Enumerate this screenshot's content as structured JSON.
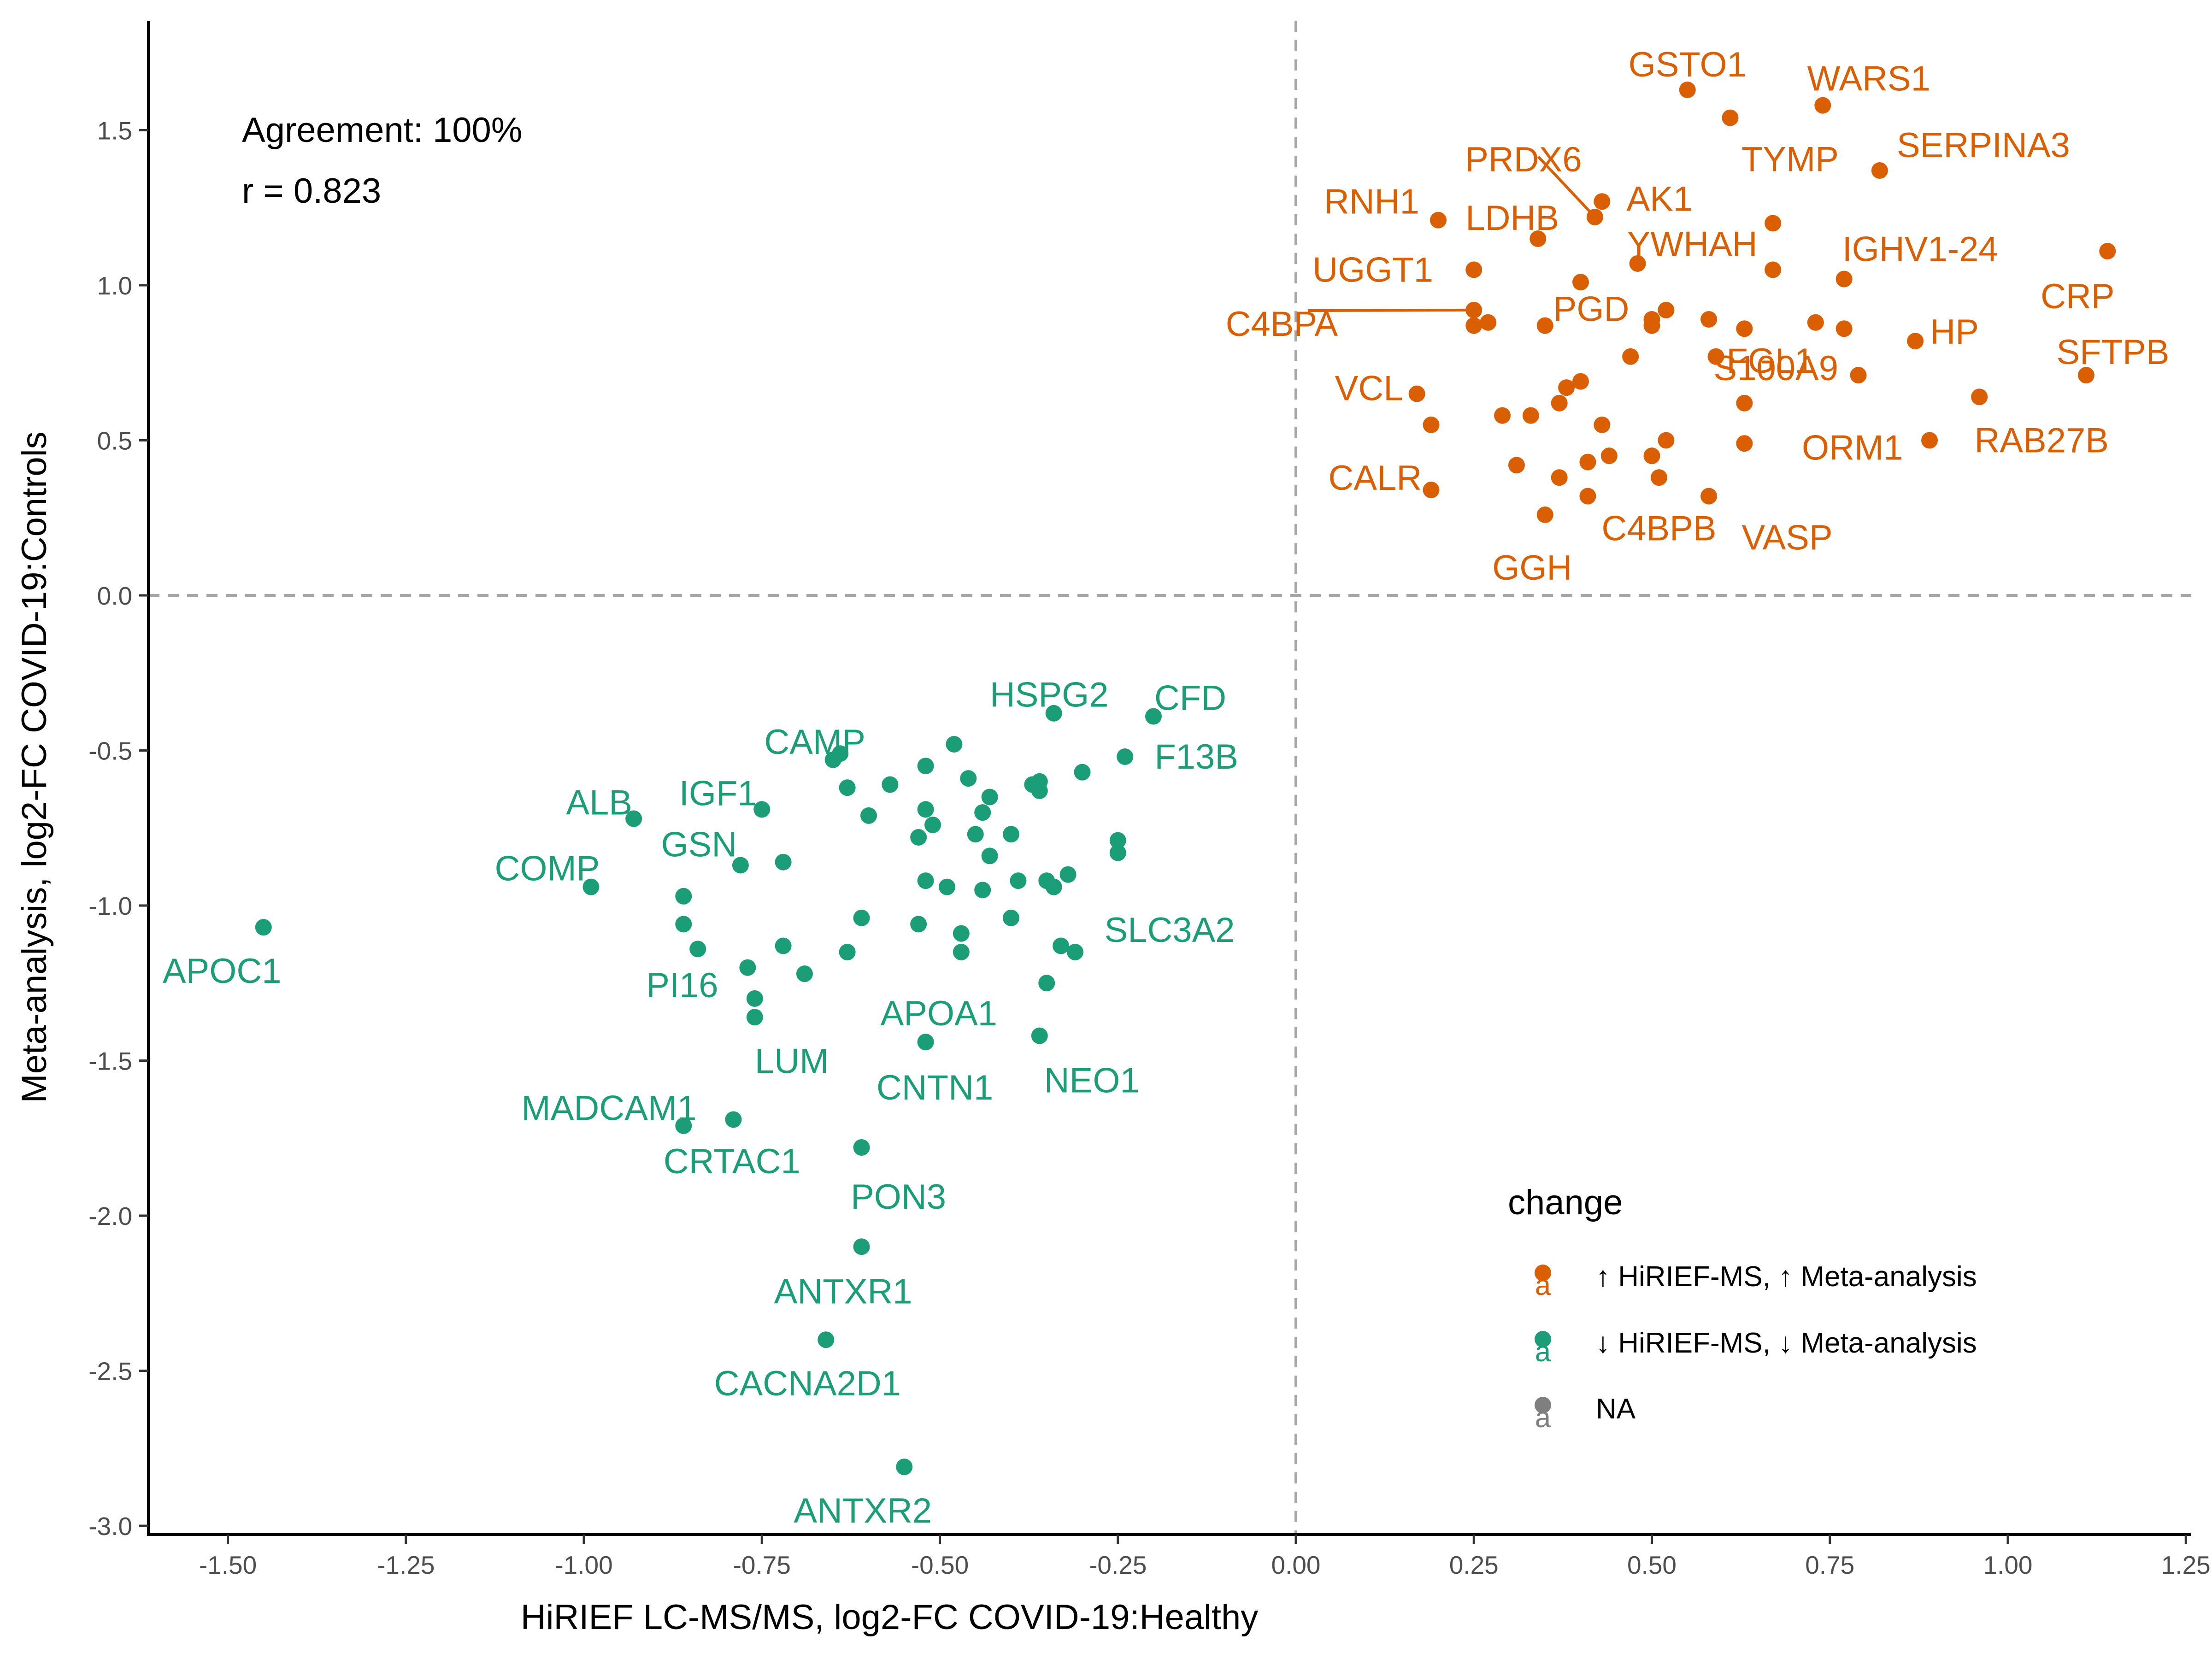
{
  "chart_data": {
    "type": "scatter",
    "xlabel": "HiRIEF LC-MS/MS, log2-FC COVID-19:Healthy",
    "ylabel": "Meta-analysis, log2-FC COVID-19:Controls",
    "xlim": [
      -1.6,
      1.27
    ],
    "ylim": [
      -3.05,
      1.85
    ],
    "x_ticks": [
      "-1.50",
      "-1.25",
      "-1.00",
      "-0.75",
      "-0.50",
      "-0.25",
      "0.00",
      "0.25",
      "0.50",
      "0.75",
      "1.00",
      "1.25"
    ],
    "y_ticks": [
      "-3.0",
      "-2.5",
      "-2.0",
      "-1.5",
      "-1.0",
      "-0.5",
      "0.0",
      "0.5",
      "1.0",
      "1.5"
    ],
    "reference_lines": {
      "x": 0,
      "y": 0,
      "style": "dashed",
      "color": "#a6a6a6"
    },
    "grid": false,
    "annotations": [
      "Agreement: 100%",
      "r = 0.823"
    ],
    "legend": {
      "title": "change",
      "position": "right",
      "key_glyph": "a",
      "entries": [
        {
          "label": "↑ HiRIEF-MS, ↑ Meta-analysis",
          "color": "#D95F02"
        },
        {
          "label": "↓ HiRIEF-MS, ↓ Meta-analysis",
          "color": "#1B9E77"
        },
        {
          "label": "NA",
          "color": "#7f7f7f"
        }
      ]
    },
    "series": [
      {
        "name": "↑ HiRIEF-MS, ↑ Meta-analysis",
        "color": "#D95F02",
        "points": [
          {
            "x": 0.55,
            "y": 1.63,
            "label": "GSTO1"
          },
          {
            "x": 0.74,
            "y": 1.58,
            "label": "WARS1"
          },
          {
            "x": 0.61,
            "y": 1.54,
            "label": "TYMP"
          },
          {
            "x": 0.82,
            "y": 1.37,
            "label": "SERPINA3"
          },
          {
            "x": 0.42,
            "y": 1.22,
            "label": "PRDX6"
          },
          {
            "x": 0.43,
            "y": 1.27,
            "label": "AK1"
          },
          {
            "x": 0.2,
            "y": 1.21,
            "label": "RNH1"
          },
          {
            "x": 0.34,
            "y": 1.15,
            "label": "LDHB"
          },
          {
            "x": 0.67,
            "y": 1.2,
            "label": "YWHAH"
          },
          {
            "x": 0.77,
            "y": 1.02,
            "label": "IGHV1-24"
          },
          {
            "x": 1.14,
            "y": 1.11,
            "label": "CRP"
          },
          {
            "x": 0.25,
            "y": 1.05,
            "label": "UGGT1"
          },
          {
            "x": 0.25,
            "y": 0.92,
            "label": "C4BPA"
          },
          {
            "x": 0.4,
            "y": 1.01,
            "label": "PGD"
          },
          {
            "x": 0.63,
            "y": 0.86,
            "label": "FGL1"
          },
          {
            "x": 0.87,
            "y": 0.82,
            "label": "HP"
          },
          {
            "x": 1.11,
            "y": 0.71,
            "label": "SFTPB"
          },
          {
            "x": 0.17,
            "y": 0.65,
            "label": "VCL"
          },
          {
            "x": 0.59,
            "y": 0.77,
            "label": "S100A9"
          },
          {
            "x": 0.89,
            "y": 0.5,
            "label": "ORM1"
          },
          {
            "x": 0.96,
            "y": 0.64,
            "label": "RAB27B"
          },
          {
            "x": 0.19,
            "y": 0.34,
            "label": "CALR"
          },
          {
            "x": 0.58,
            "y": 0.32,
            "label": "VASP"
          },
          {
            "x": 0.35,
            "y": 0.26,
            "label": "GGH"
          },
          {
            "x": 0.51,
            "y": 0.38,
            "label": "C4BPB"
          },
          {
            "x": 0.48,
            "y": 1.07
          },
          {
            "x": 0.67,
            "y": 1.05
          },
          {
            "x": 0.52,
            "y": 0.92
          },
          {
            "x": 0.5,
            "y": 0.89
          },
          {
            "x": 0.5,
            "y": 0.87
          },
          {
            "x": 0.58,
            "y": 0.89
          },
          {
            "x": 0.73,
            "y": 0.88
          },
          {
            "x": 0.77,
            "y": 0.86
          },
          {
            "x": 0.25,
            "y": 0.87
          },
          {
            "x": 0.27,
            "y": 0.88
          },
          {
            "x": 0.35,
            "y": 0.87
          },
          {
            "x": 0.47,
            "y": 0.77
          },
          {
            "x": 0.79,
            "y": 0.71
          },
          {
            "x": 0.4,
            "y": 0.69
          },
          {
            "x": 0.38,
            "y": 0.67
          },
          {
            "x": 0.37,
            "y": 0.62
          },
          {
            "x": 0.29,
            "y": 0.58
          },
          {
            "x": 0.33,
            "y": 0.58
          },
          {
            "x": 0.63,
            "y": 0.62
          },
          {
            "x": 0.19,
            "y": 0.55
          },
          {
            "x": 0.43,
            "y": 0.55
          },
          {
            "x": 0.52,
            "y": 0.5
          },
          {
            "x": 0.63,
            "y": 0.49
          },
          {
            "x": 0.31,
            "y": 0.42
          },
          {
            "x": 0.41,
            "y": 0.43
          },
          {
            "x": 0.44,
            "y": 0.45
          },
          {
            "x": 0.5,
            "y": 0.45
          },
          {
            "x": 0.37,
            "y": 0.38
          },
          {
            "x": 0.41,
            "y": 0.32
          }
        ]
      },
      {
        "name": "↓ HiRIEF-MS, ↓ Meta-analysis",
        "color": "#1B9E77",
        "points": [
          {
            "x": -1.45,
            "y": -1.07,
            "label": "APOC1"
          },
          {
            "x": -0.34,
            "y": -0.38,
            "label": "HSPG2"
          },
          {
            "x": -0.2,
            "y": -0.39,
            "label": "CFD"
          },
          {
            "x": -0.64,
            "y": -0.51,
            "label": "CAMP"
          },
          {
            "x": -0.24,
            "y": -0.52,
            "label": "F13B"
          },
          {
            "x": -0.93,
            "y": -0.72,
            "label": "ALB"
          },
          {
            "x": -0.75,
            "y": -0.69,
            "label": "IGF1"
          },
          {
            "x": -0.78,
            "y": -0.87,
            "label": "GSN"
          },
          {
            "x": -0.99,
            "y": -0.94,
            "label": "COMP"
          },
          {
            "x": -0.31,
            "y": -1.15,
            "label": "SLC3A2"
          },
          {
            "x": -0.84,
            "y": -1.14,
            "label": "PI16"
          },
          {
            "x": -0.52,
            "y": -1.44,
            "label": "APOA1"
          },
          {
            "x": -0.76,
            "y": -1.36,
            "label": "LUM"
          },
          {
            "x": -0.36,
            "y": -1.42,
            "label": "NEO1"
          },
          {
            "x": -0.52,
            "y": -1.44,
            "label": "CNTN1"
          },
          {
            "x": -0.79,
            "y": -1.69,
            "label": "MADCAM1"
          },
          {
            "x": -0.86,
            "y": -1.71,
            "label": "CRTAC1"
          },
          {
            "x": -0.61,
            "y": -1.78,
            "label": "PON3"
          },
          {
            "x": -0.61,
            "y": -2.1,
            "label": "ANTXR1"
          },
          {
            "x": -0.66,
            "y": -2.4,
            "label": "CACNA2D1"
          },
          {
            "x": -0.55,
            "y": -2.81,
            "label": "ANTXR2"
          },
          {
            "x": -0.48,
            "y": -0.48
          },
          {
            "x": -0.65,
            "y": -0.53
          },
          {
            "x": -0.52,
            "y": -0.55
          },
          {
            "x": -0.3,
            "y": -0.57
          },
          {
            "x": -0.46,
            "y": -0.59
          },
          {
            "x": -0.63,
            "y": -0.62
          },
          {
            "x": -0.57,
            "y": -0.61
          },
          {
            "x": -0.37,
            "y": -0.61
          },
          {
            "x": -0.36,
            "y": -0.6
          },
          {
            "x": -0.36,
            "y": -0.63
          },
          {
            "x": -0.43,
            "y": -0.65
          },
          {
            "x": -0.52,
            "y": -0.69
          },
          {
            "x": -0.44,
            "y": -0.7
          },
          {
            "x": -0.6,
            "y": -0.71
          },
          {
            "x": -0.51,
            "y": -0.74
          },
          {
            "x": -0.53,
            "y": -0.78
          },
          {
            "x": -0.45,
            "y": -0.77
          },
          {
            "x": -0.4,
            "y": -0.77
          },
          {
            "x": -0.25,
            "y": -0.79
          },
          {
            "x": -0.43,
            "y": -0.84
          },
          {
            "x": -0.72,
            "y": -0.86
          },
          {
            "x": -0.25,
            "y": -0.83
          },
          {
            "x": -0.32,
            "y": -0.9
          },
          {
            "x": -0.52,
            "y": -0.92
          },
          {
            "x": -0.49,
            "y": -0.94
          },
          {
            "x": -0.44,
            "y": -0.95
          },
          {
            "x": -0.39,
            "y": -0.92
          },
          {
            "x": -0.35,
            "y": -0.92
          },
          {
            "x": -0.34,
            "y": -0.94
          },
          {
            "x": -0.86,
            "y": -0.97
          },
          {
            "x": -0.61,
            "y": -1.04
          },
          {
            "x": -0.4,
            "y": -1.04
          },
          {
            "x": -0.86,
            "y": -1.06
          },
          {
            "x": -0.53,
            "y": -1.06
          },
          {
            "x": -0.47,
            "y": -1.09
          },
          {
            "x": -0.72,
            "y": -1.13
          },
          {
            "x": -0.33,
            "y": -1.13
          },
          {
            "x": -0.63,
            "y": -1.15
          },
          {
            "x": -0.47,
            "y": -1.15
          },
          {
            "x": -0.77,
            "y": -1.2
          },
          {
            "x": -0.69,
            "y": -1.22
          },
          {
            "x": -0.35,
            "y": -1.25
          },
          {
            "x": -0.76,
            "y": -1.3
          }
        ]
      }
    ]
  }
}
